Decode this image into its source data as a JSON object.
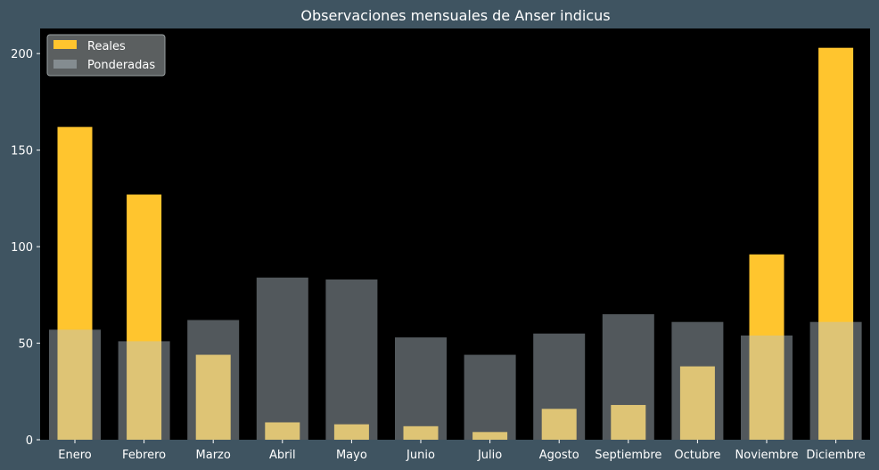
{
  "chart_data": {
    "type": "bar",
    "title": "Observaciones mensuales de Anser indicus",
    "xlabel": "",
    "ylabel": "",
    "categories": [
      "Enero",
      "Febrero",
      "Marzo",
      "Abril",
      "Mayo",
      "Junio",
      "Julio",
      "Agosto",
      "Septiembre",
      "Octubre",
      "Noviembre",
      "Diciembre"
    ],
    "series": [
      {
        "name": "Reales",
        "color": "#ffc52e",
        "values": [
          162,
          127,
          44,
          9,
          8,
          7,
          4,
          16,
          18,
          38,
          96,
          203
        ]
      },
      {
        "name": "Ponderadas",
        "color": "#b5c4cc",
        "values": [
          57,
          51,
          62,
          84,
          83,
          53,
          44,
          55,
          65,
          61,
          54,
          61
        ]
      }
    ],
    "ylim": [
      0,
      213
    ],
    "yticks": [
      0,
      50,
      100,
      150,
      200
    ],
    "legend": "top-left",
    "grid": false,
    "plot_background": "#000000",
    "figure_background": "#3f5461"
  }
}
